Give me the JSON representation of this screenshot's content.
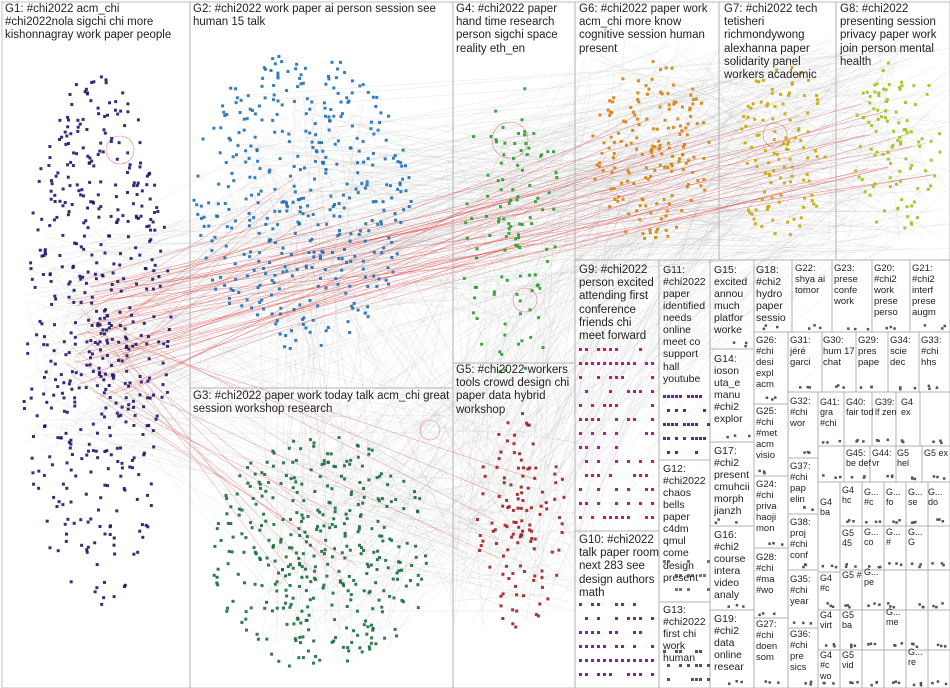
{
  "groups": [
    {
      "id": "G1",
      "text": "G1: #chi2022 acm_chi #chi2022nola sigchi chi more kishonnagray work paper people",
      "color": "#1a1a6e"
    },
    {
      "id": "G2",
      "text": "G2: #chi2022 work paper ai person session see human 15 talk",
      "color": "#1f6fb5"
    },
    {
      "id": "G3",
      "text": "G3: #chi2022 paper work today talk acm_chi great session workshop research",
      "color": "#1a6b3a"
    },
    {
      "id": "G4",
      "text": "G4: #chi2022 paper hand time research person sigchi space reality eth_en",
      "color": "#2a9d2a"
    },
    {
      "id": "G5",
      "text": "G5: #chi2022 workers tools crowd design chi paper data hybrid workshop",
      "color": "#a11d1d"
    },
    {
      "id": "G6",
      "text": "G6: #chi2022 paper work acm_chi more know cognitive session human present",
      "color": "#d9800a"
    },
    {
      "id": "G7",
      "text": "G7: #chi2022 tech tetisheri richmondywong alexhanna paper solidarity panel workers academic",
      "color": "#c9a800"
    },
    {
      "id": "G8",
      "text": "G8: #chi2022 presenting session privacy paper work join person mental health",
      "color": "#9cc21f"
    },
    {
      "id": "G9",
      "text": "G9: #chi2022 person excited attending first conference friends chi meet forward",
      "color": "#c2187a"
    },
    {
      "id": "G10",
      "text": "G10: #chi2022 talk paper room next 283 see design authors math",
      "color": "#7a2a8a"
    },
    {
      "id": "G11",
      "text": "G11: #chi2022 paper identified needs online meet co support hall youtube",
      "color": "#5b2c8f"
    },
    {
      "id": "G12",
      "text": "G12: #chi2022 chaos bells paper c4dm qmul come design present",
      "color": "#777777"
    },
    {
      "id": "G13",
      "text": "G13: #chi2022 first chi work human",
      "color": "#555555"
    },
    {
      "id": "G14",
      "text": "G14: ioson uta_e manu #chi2 explor",
      "color": "#333333"
    },
    {
      "id": "G15",
      "text": "G15: excited annou much platfor worke",
      "color": "#333333"
    },
    {
      "id": "G16",
      "text": "G16: #chi2 course intera video analy",
      "color": "#333333"
    },
    {
      "id": "G17",
      "text": "G17: #chi2 present cmuhcii morph jianzh",
      "color": "#333333"
    },
    {
      "id": "G18",
      "text": "G18: #chi2 hydro paper sessio",
      "color": "#333333"
    },
    {
      "id": "G19",
      "text": "G19: #chi2 data online resear",
      "color": "#333333"
    },
    {
      "id": "G20",
      "text": "G20: #chi2 work prese perso",
      "color": "#333333"
    },
    {
      "id": "G21",
      "text": "G21: #chi2 interf prese augm",
      "color": "#333333"
    },
    {
      "id": "G22",
      "text": "G22: shya ai tomor",
      "color": "#333333"
    },
    {
      "id": "G23",
      "text": "G23: prese confe work",
      "color": "#333333"
    },
    {
      "id": "G24",
      "text": "G24: #chi priva haoji mon",
      "color": "#333333"
    },
    {
      "id": "G25",
      "text": "G25: #chi #met acm visio",
      "color": "#333333"
    },
    {
      "id": "G26",
      "text": "G26: #chi desi expl acm",
      "color": "#333333"
    },
    {
      "id": "G27",
      "text": "G27: #chi doen som",
      "color": "#333333"
    },
    {
      "id": "G28",
      "text": "G28: #chi #ma #wo",
      "color": "#333333"
    },
    {
      "id": "G29",
      "text": "G29: pres pape",
      "color": "#333333"
    },
    {
      "id": "G30",
      "text": "G30: hum 17 chat",
      "color": "#333333"
    },
    {
      "id": "G31",
      "text": "G31: jéré garci",
      "color": "#333333"
    },
    {
      "id": "G32",
      "text": "G32: #chi wor",
      "color": "#333333"
    },
    {
      "id": "G33",
      "text": "G33: #chi hhs",
      "color": "#333333"
    },
    {
      "id": "G34",
      "text": "G34: scie dec",
      "color": "#333333"
    },
    {
      "id": "G35",
      "text": "G35: #chi year",
      "color": "#333333"
    },
    {
      "id": "G36",
      "text": "G36: #chi pre sics",
      "color": "#333333"
    },
    {
      "id": "G37",
      "text": "G37: #chi pap elin",
      "color": "#333333"
    },
    {
      "id": "G38",
      "text": "G38: proj #chi conf",
      "color": "#333333"
    },
    {
      "id": "G39",
      "text": "G39: lf zen",
      "color": "#333333"
    },
    {
      "id": "G40",
      "text": "G40: fair tod",
      "color": "#333333"
    },
    {
      "id": "G41",
      "text": "G41: gra #chi",
      "color": "#333333"
    },
    {
      "id": "G42",
      "text": "G4 ex",
      "color": "#333333"
    },
    {
      "id": "G43",
      "text": "G4 ba",
      "color": "#333333"
    },
    {
      "id": "G44",
      "text": "G44: vr",
      "color": "#333333"
    },
    {
      "id": "G45",
      "text": "G45: be def",
      "color": "#333333"
    },
    {
      "id": "G46",
      "text": "G4 hc",
      "color": "#333333"
    },
    {
      "id": "G47",
      "text": "G4 #c",
      "color": "#333333"
    },
    {
      "id": "G48",
      "text": "G4 virt",
      "color": "#333333"
    },
    {
      "id": "G49",
      "text": "G4 #c wo",
      "color": "#333333"
    },
    {
      "id": "G50",
      "text": "G5 hel",
      "color": "#333333"
    },
    {
      "id": "G51",
      "text": "G5 ex",
      "color": "#333333"
    },
    {
      "id": "G52",
      "text": "G5 45",
      "color": "#333333"
    },
    {
      "id": "G53",
      "text": "G5 ba",
      "color": "#333333"
    },
    {
      "id": "G54",
      "text": "G5 #",
      "color": "#333333"
    },
    {
      "id": "G55",
      "text": "G5 vid",
      "color": "#333333"
    }
  ],
  "grid": {
    "small_labels": [
      "G... #c",
      "G... fo",
      "G... se",
      "G... do",
      "G... co",
      "G... #",
      "G... G",
      "G... pe",
      "G... me",
      "G... re"
    ]
  },
  "colors": {
    "border": "#b0b0b0",
    "edge": "#bbbbbb",
    "highlight_edge": "#e03030"
  }
}
